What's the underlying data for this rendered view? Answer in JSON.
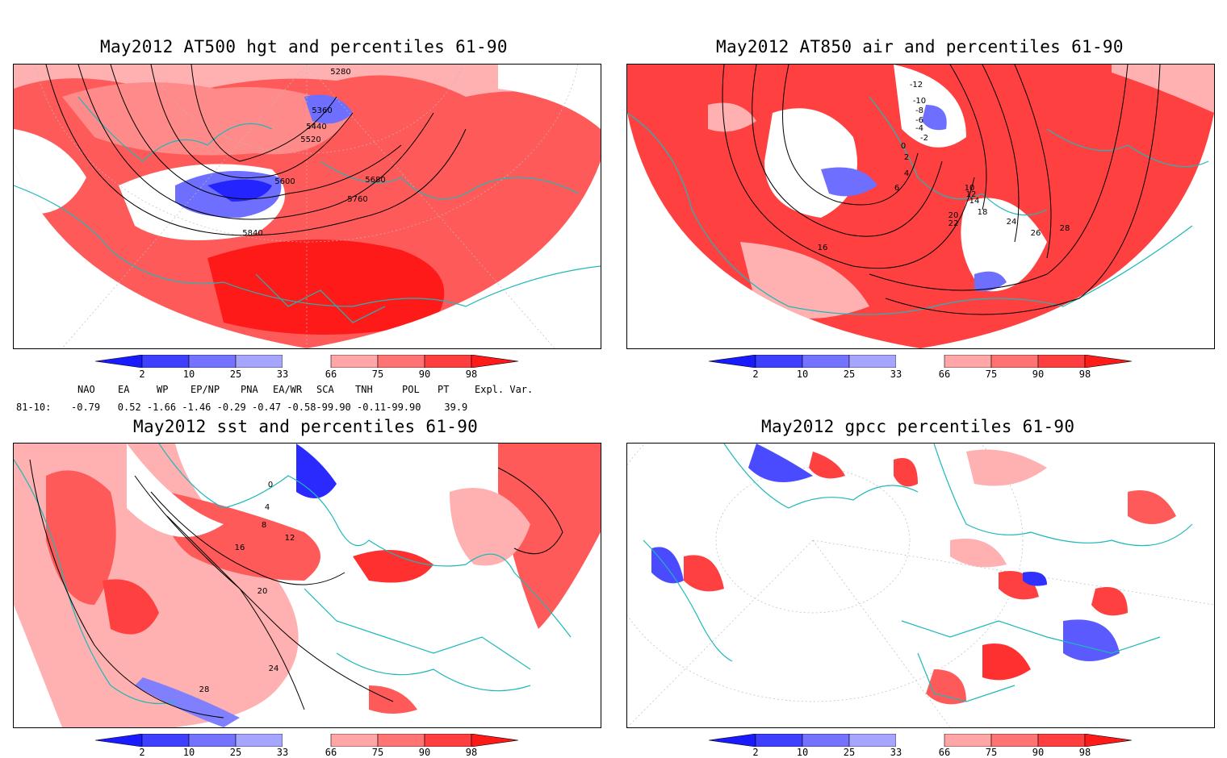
{
  "panels": [
    {
      "title": "May2012 AT500 hgt and percentiles 61-90",
      "contour_labels": [
        "5280",
        "5360",
        "5440",
        "5520",
        "5600",
        "5680",
        "5760",
        "5840"
      ]
    },
    {
      "title": "May2012 AT850 air and percentiles 61-90",
      "contour_labels": [
        "-12",
        "-10",
        "-8",
        "-6",
        "-4",
        "-2",
        "0",
        "2",
        "4",
        "6",
        "10",
        "12",
        "14",
        "16",
        "18",
        "20",
        "22",
        "24",
        "26",
        "28"
      ]
    },
    {
      "title": "May2012 sst and percentiles 61-90",
      "contour_labels": [
        "0",
        "4",
        "8",
        "12",
        "16",
        "20",
        "24",
        "28"
      ]
    },
    {
      "title": "May2012 gpcc percentiles 61-90",
      "contour_labels": []
    }
  ],
  "colorbar": {
    "labels": [
      "2",
      "10",
      "25",
      "33",
      "66",
      "75",
      "90",
      "98"
    ],
    "colors": [
      "#1a1aff",
      "#3f3fff",
      "#7373ff",
      "#a6a6ff",
      "#ffffff",
      "#ffa6a6",
      "#ff7373",
      "#ff3f3f",
      "#ff1a1a"
    ]
  },
  "indices": {
    "headers": [
      "NAO",
      "EA",
      "WP",
      "EP/NP",
      "PNA",
      "EA/WR",
      "SCA",
      "TNH",
      "POL",
      "PT",
      "Expl. Var."
    ],
    "row_label": "81-10:",
    "values": "-0.79   0.52 -1.66 -1.46 -0.29 -0.47 -0.58-99.90 -0.11-99.90    39.9"
  },
  "colors": {
    "coast": "#1fb8b8",
    "contour": "#000000",
    "grid": "#bbbbbb"
  }
}
